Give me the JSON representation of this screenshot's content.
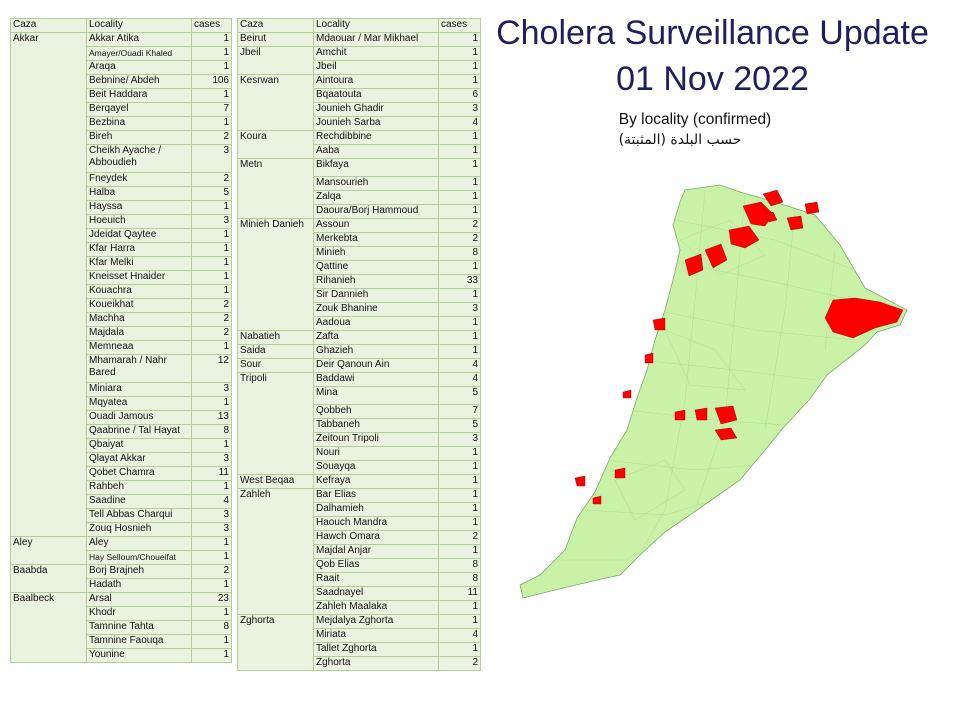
{
  "title_line1": "Cholera Surveillance Update",
  "title_line2": "01 Nov 2022",
  "subtitle_en": "By locality (confirmed)",
  "subtitle_ar": "حسب البلدة (المثبتة)",
  "colors": {
    "map_base": "#c9f2a6",
    "map_affected": "#ff0000",
    "table_fill": "#eaf3df",
    "title": "#1f1f5f"
  },
  "headers": {
    "caza": "Caza",
    "locality": "Locality",
    "cases": "cases"
  },
  "table_left": [
    {
      "caza": "Akkar",
      "rows": [
        {
          "locality": "Akkar Atika",
          "cases": 1
        },
        {
          "locality": "Amayer/Ouadi Khaled",
          "cases": 1,
          "small": true
        },
        {
          "locality": "Araqa",
          "cases": 1
        },
        {
          "locality": "Bebnine/ Abdeh",
          "cases": 106
        },
        {
          "locality": "Beit Haddara",
          "cases": 1
        },
        {
          "locality": "Berqayel",
          "cases": 7
        },
        {
          "locality": "Bezbina",
          "cases": 1
        },
        {
          "locality": "Bireh",
          "cases": 2
        },
        {
          "locality": "Cheikh Ayache / Abboudieh",
          "cases": 3,
          "tall": true
        },
        {
          "locality": "Fneydek",
          "cases": 2
        },
        {
          "locality": "Halba",
          "cases": 5
        },
        {
          "locality": "Hayssa",
          "cases": 1
        },
        {
          "locality": "Hoeuich",
          "cases": 3
        },
        {
          "locality": "Jdeidat Qaytee",
          "cases": 1
        },
        {
          "locality": "Kfar Harra",
          "cases": 1
        },
        {
          "locality": "Kfar Melki",
          "cases": 1
        },
        {
          "locality": "Kneisset Hnaider",
          "cases": 1
        },
        {
          "locality": "Kouachra",
          "cases": 1
        },
        {
          "locality": "Koueikhat",
          "cases": 2
        },
        {
          "locality": "Machha",
          "cases": 2
        },
        {
          "locality": "Majdala",
          "cases": 2
        },
        {
          "locality": "Memneaa",
          "cases": 1
        },
        {
          "locality": "Mhamarah / Nahr Bared",
          "cases": 12,
          "tall": true
        },
        {
          "locality": "Miniara",
          "cases": 3
        },
        {
          "locality": "Mqyatea",
          "cases": 1
        },
        {
          "locality": "Ouadi Jamous",
          "cases": 13
        },
        {
          "locality": "Qaabrine / Tal Hayat",
          "cases": 8
        },
        {
          "locality": "Qbaiyat",
          "cases": 1
        },
        {
          "locality": "Qlayat Akkar",
          "cases": 3
        },
        {
          "locality": "Qobet Chamra",
          "cases": 11
        },
        {
          "locality": "Rahbeh",
          "cases": 1
        },
        {
          "locality": "Saadine",
          "cases": 4
        },
        {
          "locality": "Tell Abbas Charqui",
          "cases": 3
        },
        {
          "locality": "Zouq Hosnieh",
          "cases": 3
        }
      ]
    },
    {
      "caza": "Aley",
      "rows": [
        {
          "locality": "Aley",
          "cases": 1
        },
        {
          "locality": "Hay Selloum/Choueifat",
          "cases": 1,
          "small": true
        }
      ]
    },
    {
      "caza": "Baabda",
      "rows": [
        {
          "locality": "Borj Brajneh",
          "cases": 2
        },
        {
          "locality": "Hadath",
          "cases": 1
        }
      ]
    },
    {
      "caza": "Baalbeck",
      "rows": [
        {
          "locality": "Arsal",
          "cases": 23
        },
        {
          "locality": "Khodr",
          "cases": 1
        },
        {
          "locality": "Tamnine Tahta",
          "cases": 8
        },
        {
          "locality": "Tamnine Faouqa",
          "cases": 1
        },
        {
          "locality": "Younine",
          "cases": 1
        }
      ]
    }
  ],
  "table_right": [
    {
      "caza": "Beirut",
      "rows": [
        {
          "locality": "Mdaouar / Mar Mikhael",
          "cases": 1
        }
      ]
    },
    {
      "caza": "Jbeil",
      "rows": [
        {
          "locality": "Amchit",
          "cases": 1
        },
        {
          "locality": "Jbeil",
          "cases": 1
        }
      ]
    },
    {
      "caza": "Kesrwan",
      "rows": [
        {
          "locality": "Aintoura",
          "cases": 1
        },
        {
          "locality": "Bqaatouta",
          "cases": 6
        },
        {
          "locality": "Jounieh Ghadir",
          "cases": 3
        },
        {
          "locality": "Jounieh Sarba",
          "cases": 4
        }
      ]
    },
    {
      "caza": "Koura",
      "rows": [
        {
          "locality": "Rechdibbine",
          "cases": 1
        },
        {
          "locality": "Aaba",
          "cases": 1
        }
      ]
    },
    {
      "caza": "Metn",
      "rows": [
        {
          "locality": "Bikfaya",
          "cases": 1,
          "mid": true
        },
        {
          "locality": "Mansourieh",
          "cases": 1
        },
        {
          "locality": "Zalqa",
          "cases": 1
        },
        {
          "locality": "Daoura/Borj Hammoud",
          "cases": 1
        }
      ]
    },
    {
      "caza": "Minieh Danieh",
      "rows": [
        {
          "locality": "Assoun",
          "cases": 2
        },
        {
          "locality": "Merkebta",
          "cases": 2
        },
        {
          "locality": "Minieh",
          "cases": 8
        },
        {
          "locality": "Qattine",
          "cases": 1
        },
        {
          "locality": "Rihanieh",
          "cases": 33
        },
        {
          "locality": "Sir Dannieh",
          "cases": 1
        },
        {
          "locality": "Zouk Bhanine",
          "cases": 3
        },
        {
          "locality": "Aadoua",
          "cases": 1
        }
      ]
    },
    {
      "caza": "Nabatieh",
      "rows": [
        {
          "locality": "Zafta",
          "cases": 1
        }
      ]
    },
    {
      "caza": "Saida",
      "rows": [
        {
          "locality": "Ghazieh",
          "cases": 1
        }
      ]
    },
    {
      "caza": "Sour",
      "rows": [
        {
          "locality": "Deir Qanoun Ain",
          "cases": 4
        }
      ]
    },
    {
      "caza": "Tripoli",
      "rows": [
        {
          "locality": "Baddawi",
          "cases": 4
        },
        {
          "locality": "Mina",
          "cases": 5,
          "mid": true
        },
        {
          "locality": "Qobbeh",
          "cases": 7
        },
        {
          "locality": "Tabbaneh",
          "cases": 5
        },
        {
          "locality": "Zeitoun Tripoli",
          "cases": 3
        },
        {
          "locality": "Nouri",
          "cases": 1
        },
        {
          "locality": "Souayqa",
          "cases": 1
        }
      ]
    },
    {
      "caza": "West Beqaa",
      "rows": [
        {
          "locality": "Kefraya",
          "cases": 1
        }
      ]
    },
    {
      "caza": "Zahleh",
      "rows": [
        {
          "locality": "Bar Elias",
          "cases": 1
        },
        {
          "locality": "Dalhamieh",
          "cases": 1
        },
        {
          "locality": "Haouch Mandra",
          "cases": 1
        },
        {
          "locality": "Hawch Omara",
          "cases": 2
        },
        {
          "locality": "Majdal Anjar",
          "cases": 1
        },
        {
          "locality": "Qob Elias",
          "cases": 8
        },
        {
          "locality": "Raait",
          "cases": 8
        },
        {
          "locality": "Saadnayel",
          "cases": 11
        },
        {
          "locality": "Zahleh Maalaka",
          "cases": 1
        }
      ]
    },
    {
      "caza": "Zghorta",
      "rows": [
        {
          "locality": "Mejdalya Zghorta",
          "cases": 1
        },
        {
          "locality": "Miriata",
          "cases": 4
        },
        {
          "locality": "Tallet Zghorta",
          "cases": 1
        },
        {
          "locality": "Zghorta",
          "cases": 2
        }
      ]
    }
  ]
}
